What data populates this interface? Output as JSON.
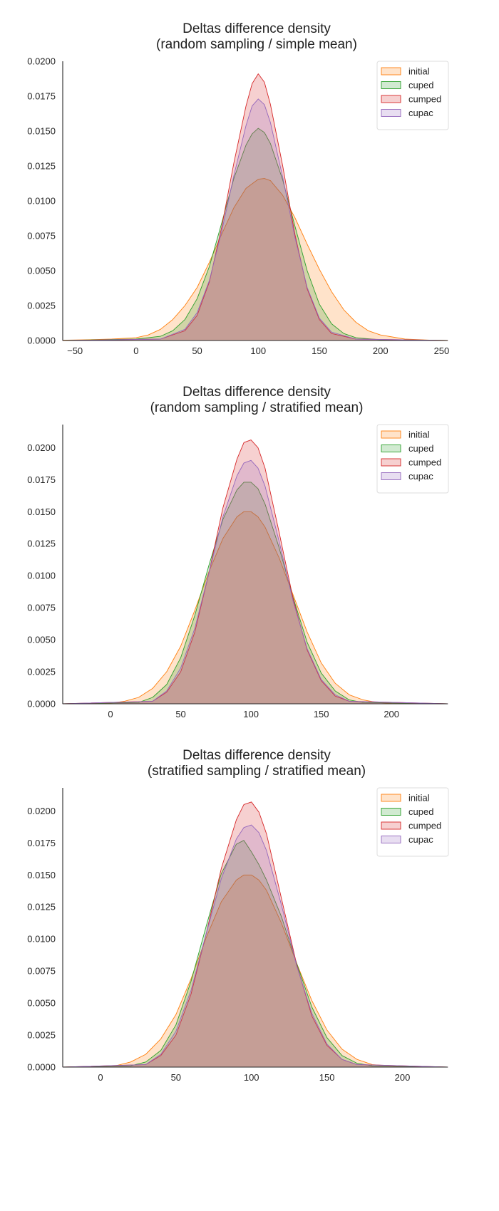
{
  "chart_data": [
    {
      "type": "area",
      "title": "Deltas difference density",
      "subtitle": "(random sampling / simple mean)",
      "xlabel": "",
      "ylabel": "",
      "xlim": [
        -60,
        255
      ],
      "ylim": [
        0,
        0.02
      ],
      "x_ticks": [
        -50,
        0,
        50,
        100,
        150,
        200,
        250
      ],
      "y_ticks": [
        0,
        0.0025,
        0.005,
        0.0075,
        0.01,
        0.0125,
        0.015,
        0.0175,
        0.02
      ],
      "y_tick_labels": [
        "0.0000",
        "0.0025",
        "0.0050",
        "0.0075",
        "0.0100",
        "0.0125",
        "0.0150",
        "0.0175",
        "0.0200"
      ],
      "grid": false,
      "legend_position": "top-right",
      "series": [
        {
          "name": "initial",
          "color": "#ff7f0e",
          "x": [
            -60,
            -40,
            -20,
            0,
            10,
            20,
            30,
            40,
            50,
            60,
            70,
            80,
            90,
            100,
            105,
            110,
            120,
            130,
            140,
            150,
            160,
            170,
            180,
            190,
            200,
            220,
            240,
            255
          ],
          "y": [
            2e-05,
            5e-05,
            0.0001,
            0.0002,
            0.0004,
            0.0008,
            0.0015,
            0.0025,
            0.0038,
            0.0056,
            0.0076,
            0.0095,
            0.0109,
            0.01155,
            0.0116,
            0.01145,
            0.0104,
            0.0088,
            0.0069,
            0.0051,
            0.0035,
            0.0022,
            0.0013,
            0.0007,
            0.0004,
            0.0001,
            3e-05,
            1e-05
          ]
        },
        {
          "name": "cuped",
          "color": "#2ca02c",
          "x": [
            -60,
            0,
            20,
            30,
            40,
            50,
            60,
            70,
            80,
            90,
            95,
            100,
            105,
            110,
            120,
            130,
            140,
            150,
            160,
            170,
            180,
            200,
            255
          ],
          "y": [
            0,
            0.0001,
            0.0003,
            0.0007,
            0.0015,
            0.003,
            0.0053,
            0.0084,
            0.0116,
            0.014,
            0.0148,
            0.0152,
            0.0149,
            0.0141,
            0.0115,
            0.0082,
            0.005,
            0.0026,
            0.0012,
            0.0005,
            0.0002,
            5e-05,
            0
          ]
        },
        {
          "name": "cumped",
          "color": "#d62728",
          "x": [
            -60,
            20,
            40,
            50,
            60,
            70,
            80,
            90,
            95,
            100,
            105,
            110,
            120,
            130,
            140,
            150,
            160,
            180,
            255
          ],
          "y": [
            0,
            0.0001,
            0.0007,
            0.0018,
            0.0042,
            0.0081,
            0.0127,
            0.0168,
            0.0184,
            0.0191,
            0.0185,
            0.0169,
            0.0125,
            0.0076,
            0.0037,
            0.0015,
            0.0005,
            0.0001,
            0
          ]
        },
        {
          "name": "cupac",
          "color": "#9467bd",
          "x": [
            -60,
            20,
            40,
            50,
            60,
            70,
            80,
            90,
            95,
            100,
            105,
            110,
            120,
            130,
            140,
            150,
            160,
            180,
            255
          ],
          "y": [
            0,
            0.0001,
            0.0008,
            0.002,
            0.0043,
            0.0078,
            0.0118,
            0.0154,
            0.0168,
            0.0173,
            0.0169,
            0.0156,
            0.0117,
            0.0074,
            0.0038,
            0.0016,
            0.0006,
            0.0001,
            0
          ]
        }
      ]
    },
    {
      "type": "area",
      "title": "Deltas difference density",
      "subtitle": "(random sampling / stratified mean)",
      "xlabel": "",
      "ylabel": "",
      "xlim": [
        -34,
        240
      ],
      "ylim": [
        0,
        0.0218
      ],
      "x_ticks": [
        0,
        50,
        100,
        150,
        200
      ],
      "y_ticks": [
        0,
        0.0025,
        0.005,
        0.0075,
        0.01,
        0.0125,
        0.015,
        0.0175,
        0.02
      ],
      "y_tick_labels": [
        "0.0000",
        "0.0025",
        "0.0050",
        "0.0075",
        "0.0100",
        "0.0125",
        "0.0150",
        "0.0175",
        "0.0200"
      ],
      "grid": false,
      "legend_position": "top-right",
      "series": [
        {
          "name": "initial",
          "color": "#ff7f0e",
          "x": [
            -34,
            0,
            10,
            20,
            30,
            40,
            50,
            60,
            70,
            80,
            90,
            95,
            100,
            105,
            110,
            120,
            130,
            140,
            150,
            160,
            170,
            180,
            190,
            200,
            240
          ],
          "y": [
            0,
            5e-05,
            0.0002,
            0.0005,
            0.0012,
            0.0025,
            0.0045,
            0.0073,
            0.0103,
            0.0129,
            0.0146,
            0.015,
            0.015,
            0.0146,
            0.0138,
            0.0114,
            0.0085,
            0.0056,
            0.0032,
            0.0016,
            0.0007,
            0.0003,
            0.0001,
            3e-05,
            0
          ]
        },
        {
          "name": "cuped",
          "color": "#2ca02c",
          "x": [
            -34,
            20,
            30,
            40,
            50,
            60,
            70,
            80,
            90,
            95,
            100,
            105,
            110,
            120,
            130,
            140,
            150,
            160,
            170,
            180,
            240
          ],
          "y": [
            0,
            0.0001,
            0.0005,
            0.0015,
            0.0036,
            0.0069,
            0.0108,
            0.0144,
            0.0167,
            0.0173,
            0.0173,
            0.0168,
            0.0156,
            0.0122,
            0.0083,
            0.0048,
            0.0024,
            0.001,
            0.0003,
            0.0001,
            0
          ]
        },
        {
          "name": "cumped",
          "color": "#d62728",
          "x": [
            -34,
            30,
            40,
            50,
            60,
            70,
            80,
            90,
            95,
            100,
            105,
            110,
            120,
            130,
            140,
            150,
            160,
            170,
            240
          ],
          "y": [
            0,
            0.0002,
            0.0009,
            0.0025,
            0.0056,
            0.0102,
            0.0153,
            0.0191,
            0.0204,
            0.0206,
            0.02,
            0.0184,
            0.0134,
            0.0082,
            0.0042,
            0.0018,
            0.0006,
            0.0002,
            0
          ]
        },
        {
          "name": "cupac",
          "color": "#9467bd",
          "x": [
            -34,
            30,
            40,
            50,
            60,
            70,
            80,
            90,
            95,
            100,
            105,
            110,
            120,
            130,
            140,
            150,
            160,
            170,
            240
          ],
          "y": [
            0,
            0.0002,
            0.001,
            0.0028,
            0.0059,
            0.0102,
            0.0146,
            0.0178,
            0.0188,
            0.019,
            0.0184,
            0.017,
            0.0127,
            0.008,
            0.0043,
            0.0019,
            0.0007,
            0.0002,
            0
          ]
        }
      ]
    },
    {
      "type": "area",
      "title": "Deltas difference density",
      "subtitle": "(stratified sampling / stratified mean)",
      "xlabel": "",
      "ylabel": "",
      "xlim": [
        -25,
        230
      ],
      "ylim": [
        0,
        0.0218
      ],
      "x_ticks": [
        0,
        50,
        100,
        150,
        200
      ],
      "y_ticks": [
        0,
        0.0025,
        0.005,
        0.0075,
        0.01,
        0.0125,
        0.015,
        0.0175,
        0.02
      ],
      "y_tick_labels": [
        "0.0000",
        "0.0025",
        "0.0050",
        "0.0075",
        "0.0100",
        "0.0125",
        "0.0150",
        "0.0175",
        "0.0200"
      ],
      "grid": false,
      "legend_position": "top-right",
      "series": [
        {
          "name": "initial",
          "color": "#ff7f0e",
          "x": [
            -25,
            0,
            10,
            20,
            30,
            40,
            50,
            60,
            70,
            80,
            90,
            95,
            100,
            105,
            110,
            120,
            130,
            140,
            150,
            160,
            170,
            180,
            190,
            200,
            230
          ],
          "y": [
            0,
            3e-05,
            0.0001,
            0.0004,
            0.001,
            0.0022,
            0.0041,
            0.0069,
            0.0101,
            0.0129,
            0.0146,
            0.015,
            0.015,
            0.0146,
            0.0138,
            0.0112,
            0.0081,
            0.0052,
            0.0029,
            0.0014,
            0.0006,
            0.0002,
            0.0001,
            3e-05,
            0
          ]
        },
        {
          "name": "cuped",
          "color": "#2ca02c",
          "x": [
            -25,
            20,
            30,
            40,
            50,
            60,
            70,
            80,
            90,
            95,
            100,
            105,
            110,
            120,
            130,
            140,
            150,
            160,
            170,
            180,
            230
          ],
          "y": [
            0,
            0.0001,
            0.0004,
            0.0013,
            0.0033,
            0.0067,
            0.011,
            0.0151,
            0.0174,
            0.0177,
            0.0168,
            0.0158,
            0.0146,
            0.0117,
            0.0081,
            0.0047,
            0.0023,
            0.0009,
            0.0003,
            0.0001,
            0
          ]
        },
        {
          "name": "cumped",
          "color": "#d62728",
          "x": [
            -25,
            30,
            40,
            50,
            60,
            70,
            80,
            90,
            95,
            100,
            105,
            110,
            120,
            130,
            140,
            150,
            160,
            170,
            230
          ],
          "y": [
            0,
            0.0002,
            0.0009,
            0.0025,
            0.0057,
            0.0104,
            0.0155,
            0.0193,
            0.0205,
            0.0207,
            0.0199,
            0.0182,
            0.0131,
            0.008,
            0.004,
            0.0017,
            0.0006,
            0.0002,
            0
          ]
        },
        {
          "name": "cupac",
          "color": "#9467bd",
          "x": [
            -25,
            30,
            40,
            50,
            60,
            70,
            80,
            90,
            95,
            100,
            105,
            110,
            120,
            130,
            140,
            150,
            160,
            170,
            230
          ],
          "y": [
            0,
            0.0002,
            0.001,
            0.0028,
            0.006,
            0.0104,
            0.0147,
            0.0178,
            0.0187,
            0.0189,
            0.0183,
            0.0169,
            0.0126,
            0.0079,
            0.0042,
            0.0018,
            0.0006,
            0.0002,
            0
          ]
        }
      ]
    }
  ]
}
